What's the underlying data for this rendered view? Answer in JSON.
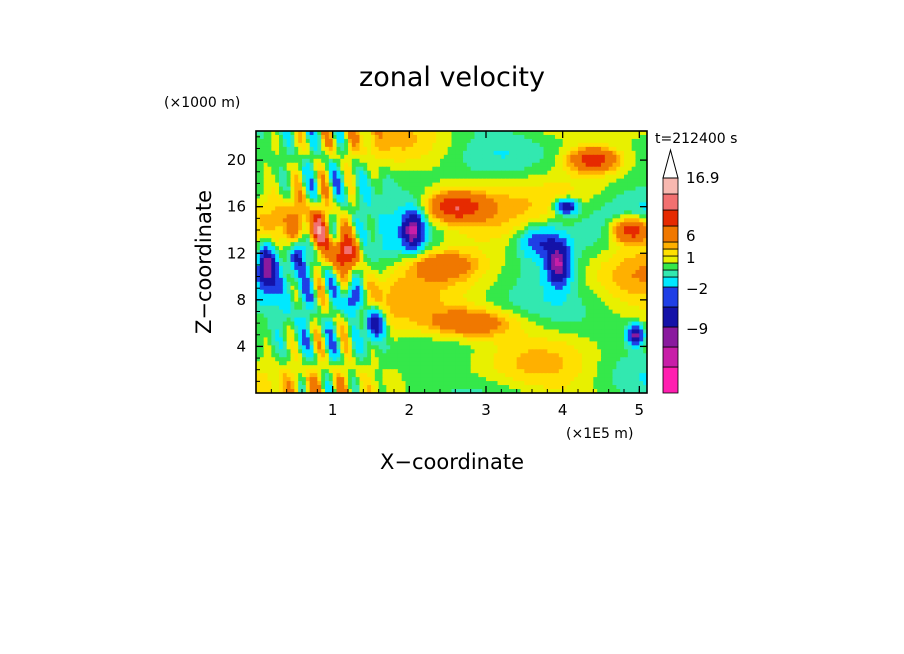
{
  "chart_data": {
    "type": "heatmap",
    "title": "zonal velocity",
    "xlabel": "X−coordinate",
    "ylabel": "Z−coordinate",
    "x_unit": "(×1E5 m)",
    "y_unit": "(×1000 m)",
    "time_label": "t=212400 s",
    "xlim": [
      0,
      5.1
    ],
    "ylim": [
      0,
      22.5
    ],
    "x_ticks": [
      1,
      2,
      3,
      4,
      5
    ],
    "y_ticks": [
      4,
      8,
      12,
      16,
      20
    ],
    "colorbar": {
      "labels": [
        {
          "value": 16.9,
          "text": "16.9"
        },
        {
          "value": 6,
          "text": "6"
        },
        {
          "value": 1,
          "text": "1"
        },
        {
          "value": -2,
          "text": "−2"
        },
        {
          "value": -9,
          "text": "−9"
        }
      ],
      "levels": [
        {
          "color": "#ff1fb0"
        },
        {
          "color": "#c81ea8"
        },
        {
          "color": "#8a1a9e"
        },
        {
          "color": "#1412a8"
        },
        {
          "color": "#1f3fe6"
        },
        {
          "color": "#00e8ff"
        },
        {
          "color": "#32e8b0"
        },
        {
          "color": "#35e84a"
        },
        {
          "color": "#e8f000"
        },
        {
          "color": "#ffe000"
        },
        {
          "color": "#ffb000"
        },
        {
          "color": "#f07800"
        },
        {
          "color": "#e62a00"
        },
        {
          "color": "#f27070"
        },
        {
          "color": "#f8b8b0"
        }
      ]
    },
    "field_features": [
      {
        "x": 0.15,
        "y": 11,
        "value": -10,
        "rx": 0.12,
        "ry": 2.2
      },
      {
        "x": 0.55,
        "y": 12,
        "value": -8,
        "rx": 0.1,
        "ry": 1.5
      },
      {
        "x": 0.8,
        "y": 14,
        "value": 8,
        "rx": 0.1,
        "ry": 1.2
      },
      {
        "x": 1.15,
        "y": 12,
        "value": 10,
        "rx": 0.2,
        "ry": 1.5
      },
      {
        "x": 1.25,
        "y": 8,
        "value": -8,
        "rx": 0.12,
        "ry": 1.4
      },
      {
        "x": 1.55,
        "y": 6,
        "value": -9,
        "rx": 0.12,
        "ry": 1.4
      },
      {
        "x": 2.05,
        "y": 14,
        "value": -10,
        "rx": 0.14,
        "ry": 1.6
      },
      {
        "x": 2.6,
        "y": 16,
        "value": 8,
        "rx": 0.35,
        "ry": 1.2
      },
      {
        "x": 2.4,
        "y": 11,
        "value": 5,
        "rx": 0.45,
        "ry": 1.2
      },
      {
        "x": 2.8,
        "y": 6,
        "value": 6,
        "rx": 0.6,
        "ry": 1.3
      },
      {
        "x": 3.7,
        "y": 13,
        "value": -5,
        "rx": 0.25,
        "ry": 1.3
      },
      {
        "x": 3.95,
        "y": 11,
        "value": -10,
        "rx": 0.15,
        "ry": 1.8
      },
      {
        "x": 4.4,
        "y": 20,
        "value": 8,
        "rx": 0.3,
        "ry": 1.0
      },
      {
        "x": 4.9,
        "y": 14,
        "value": 9,
        "rx": 0.25,
        "ry": 1.1
      },
      {
        "x": 4.05,
        "y": 16,
        "value": -10,
        "rx": 0.13,
        "ry": 0.6
      },
      {
        "x": 4.95,
        "y": 5,
        "value": -10,
        "rx": 0.1,
        "ry": 0.8
      }
    ]
  }
}
